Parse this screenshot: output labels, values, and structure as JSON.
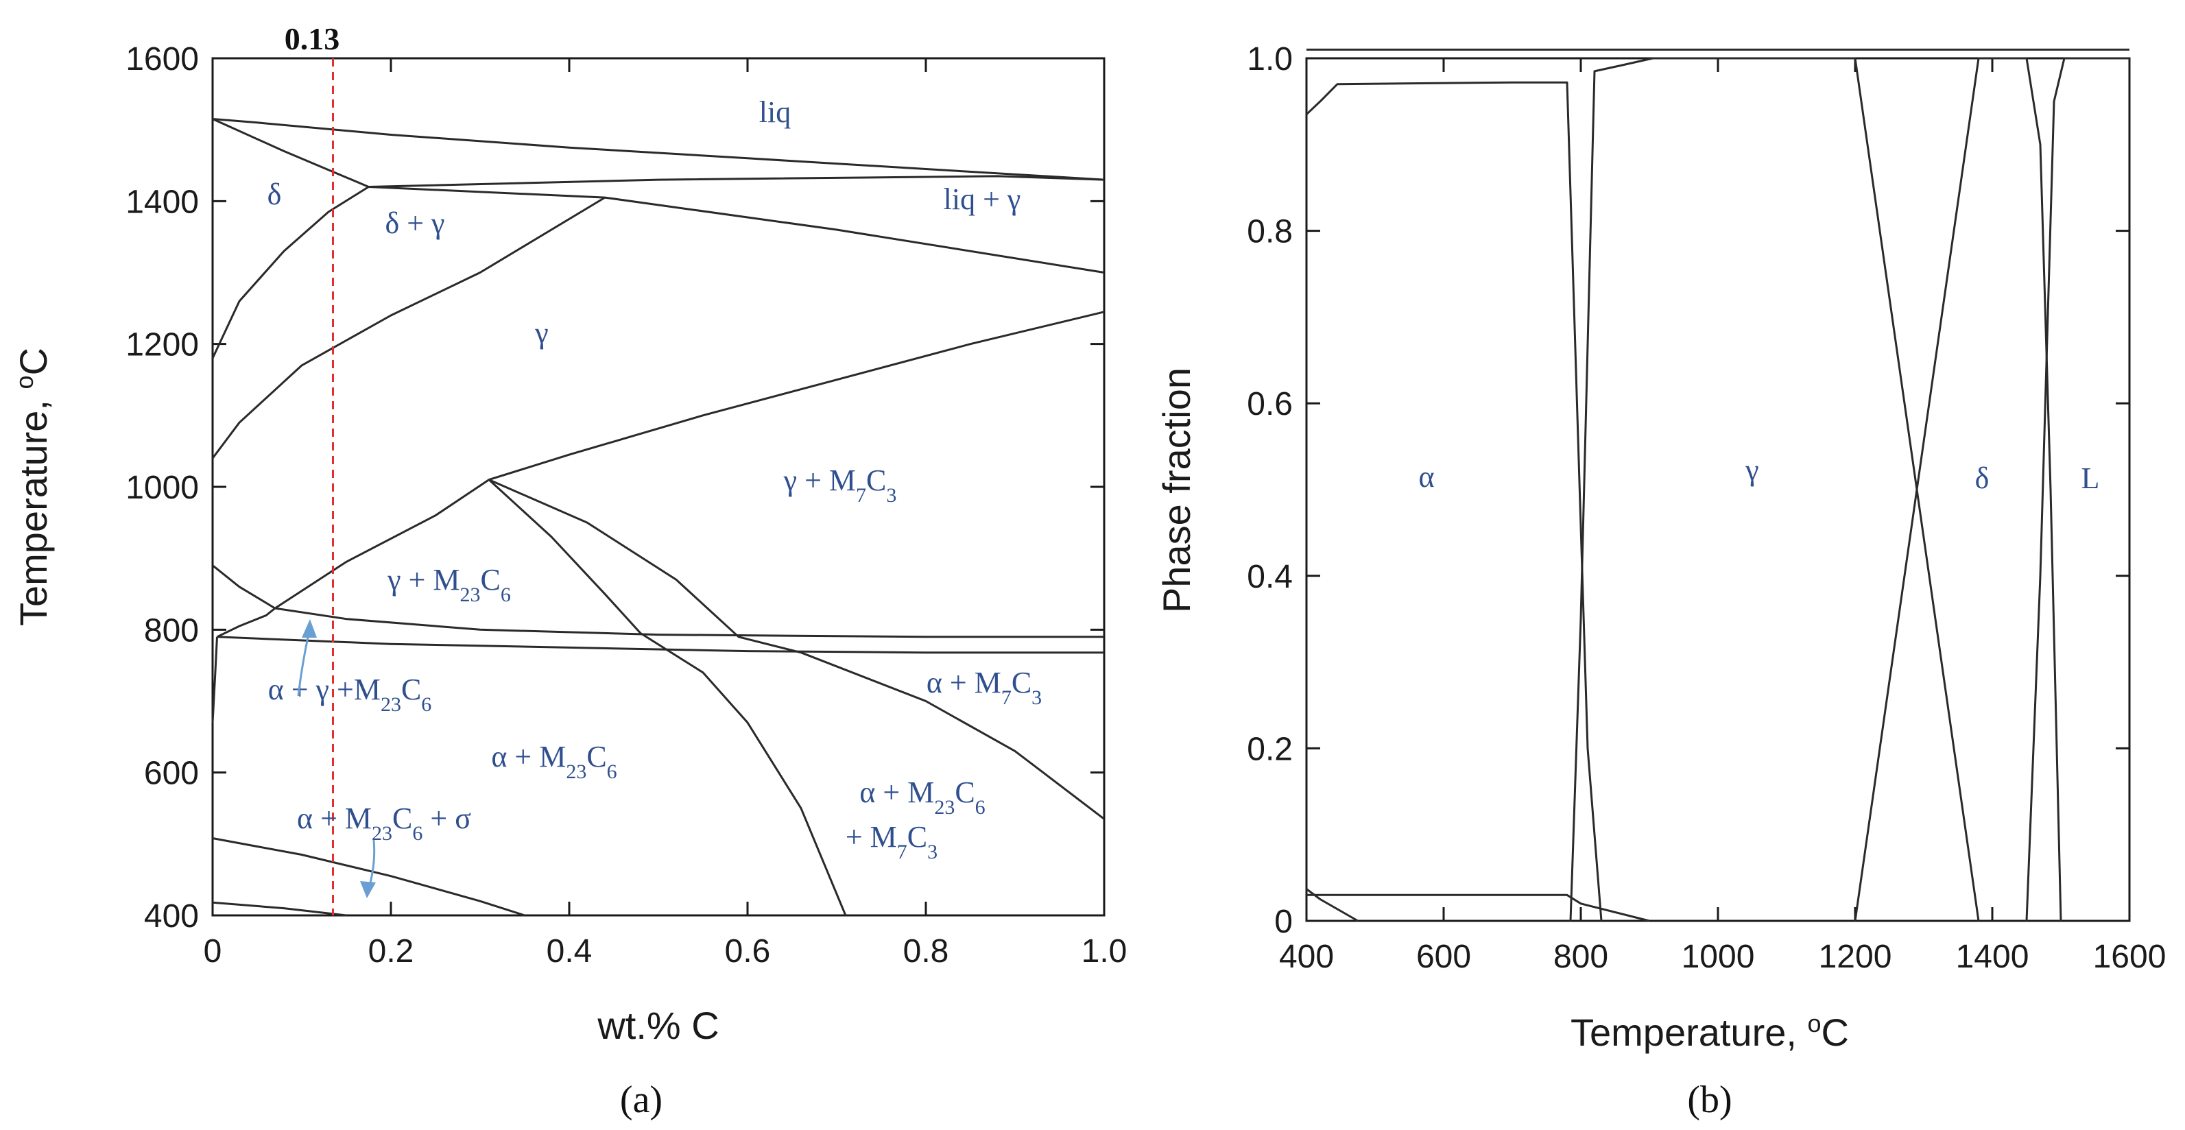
{
  "panels": {
    "a": {
      "caption": "(a)",
      "annotation": "0.13",
      "phase_labels": {
        "liq": "liq",
        "delta": "δ",
        "delta_gamma": "δ + γ",
        "liq_gamma": "liq + γ",
        "gamma": "γ",
        "gamma_m7c3": "γ + M7C3",
        "gamma_m23c6": "γ + M23C6",
        "alpha_gamma_m23c6": "α + γ +M23C6",
        "alpha_m7c3": "α + M7C3",
        "alpha_m23c6": "α + M23C6",
        "alpha_m23c6_sigma": "α + M23C6 + σ",
        "alpha_m23c6_m7c3_line1": "α + M23C6",
        "alpha_m23c6_m7c3_line2": "+ M7C3"
      }
    },
    "b": {
      "caption": "(b)",
      "phase_labels": {
        "alpha": "α",
        "gamma": "γ",
        "delta": "δ",
        "L": "L"
      }
    }
  },
  "chart_data": [
    {
      "type": "line",
      "subtype": "phase-diagram",
      "xlabel": "wt.% C",
      "ylabel": "Temperature, oC",
      "xlim": [
        0,
        1.0
      ],
      "ylim": [
        400,
        1600
      ],
      "xticks": [
        "0",
        "0.2",
        "0.4",
        "0.6",
        "0.8",
        "1.0"
      ],
      "yticks": [
        "400",
        "600",
        "800",
        "1000",
        "1200",
        "1400",
        "1600"
      ],
      "xtick_values": [
        0,
        0.2,
        0.4,
        0.6,
        0.8,
        1.0
      ],
      "ytick_values": [
        400,
        600,
        800,
        1000,
        1200,
        1400,
        1600
      ],
      "reference_line": {
        "x": 0.135,
        "color": "#e03030",
        "style": "dashed"
      },
      "series": [
        {
          "points": [
            [
              0,
              1515
            ],
            [
              0.05,
              1510
            ],
            [
              0.2,
              1493
            ],
            [
              0.4,
              1475
            ],
            [
              0.6,
              1460
            ],
            [
              0.8,
              1445
            ],
            [
              1.0,
              1430
            ]
          ]
        },
        {
          "points": [
            [
              0,
              1515
            ],
            [
              0.08,
              1470
            ],
            [
              0.175,
              1420
            ]
          ]
        },
        {
          "points": [
            [
              0.175,
              1420
            ],
            [
              0.5,
              1430
            ],
            [
              0.88,
              1435
            ],
            [
              1.0,
              1430
            ]
          ]
        },
        {
          "points": [
            [
              0.175,
              1420
            ],
            [
              0.44,
              1405
            ],
            [
              0.7,
              1360
            ],
            [
              1.0,
              1300
            ]
          ]
        },
        {
          "points": [
            [
              0,
              1180
            ],
            [
              0.03,
              1260
            ],
            [
              0.08,
              1330
            ],
            [
              0.13,
              1385
            ],
            [
              0.175,
              1420
            ]
          ]
        },
        {
          "points": [
            [
              0,
              1040
            ],
            [
              0.03,
              1090
            ],
            [
              0.1,
              1170
            ],
            [
              0.2,
              1240
            ],
            [
              0.3,
              1300
            ],
            [
              0.44,
              1405
            ]
          ]
        },
        {
          "points": [
            [
              0.07,
              830
            ],
            [
              0.15,
              895
            ],
            [
              0.25,
              960
            ],
            [
              0.31,
              1010
            ],
            [
              0.4,
              1045
            ],
            [
              0.55,
              1100
            ],
            [
              0.7,
              1150
            ],
            [
              0.85,
              1200
            ],
            [
              1.0,
              1245
            ]
          ]
        },
        {
          "points": [
            [
              0,
              890
            ],
            [
              0.03,
              860
            ],
            [
              0.07,
              830
            ]
          ]
        },
        {
          "points": [
            [
              0.005,
              790
            ],
            [
              0.03,
              805
            ],
            [
              0.06,
              820
            ],
            [
              0.07,
              830
            ]
          ]
        },
        {
          "points": [
            [
              0.07,
              830
            ],
            [
              0.15,
              815
            ],
            [
              0.3,
              800
            ],
            [
              0.5,
              793
            ],
            [
              0.8,
              790
            ],
            [
              1.0,
              790
            ]
          ]
        },
        {
          "points": [
            [
              0.005,
              790
            ],
            [
              0.2,
              780
            ],
            [
              0.4,
              775
            ],
            [
              0.6,
              770
            ],
            [
              0.8,
              768
            ],
            [
              1.0,
              768
            ]
          ]
        },
        {
          "points": [
            [
              0.005,
              790
            ],
            [
              0.003,
              740
            ],
            [
              0,
              670
            ]
          ]
        },
        {
          "points": [
            [
              0.31,
              1010
            ],
            [
              0.38,
              930
            ],
            [
              0.44,
              850
            ],
            [
              0.48,
              795
            ]
          ]
        },
        {
          "points": [
            [
              0.31,
              1010
            ],
            [
              0.42,
              950
            ],
            [
              0.52,
              870
            ],
            [
              0.59,
              790
            ],
            [
              0.66,
              768
            ]
          ]
        },
        {
          "points": [
            [
              0.66,
              768
            ],
            [
              0.8,
              700
            ],
            [
              0.9,
              630
            ],
            [
              1.0,
              535
            ]
          ]
        },
        {
          "points": [
            [
              0.48,
              795
            ],
            [
              0.55,
              740
            ],
            [
              0.6,
              670
            ],
            [
              0.66,
              550
            ],
            [
              0.71,
              400
            ]
          ]
        },
        {
          "points": [
            [
              0,
              508
            ],
            [
              0.1,
              485
            ],
            [
              0.2,
              455
            ],
            [
              0.3,
              420
            ],
            [
              0.35,
              400
            ]
          ]
        },
        {
          "points": [
            [
              0,
              418
            ],
            [
              0.08,
              410
            ],
            [
              0.15,
              400
            ]
          ]
        }
      ]
    },
    {
      "type": "line",
      "ylabel": "Phase fraction",
      "xlabel": "Temperature, oC",
      "xlim": [
        400,
        1600
      ],
      "ylim": [
        0,
        1.0
      ],
      "xticks": [
        "400",
        "600",
        "800",
        "1000",
        "1200",
        "1400",
        "1600"
      ],
      "yticks": [
        "0",
        "0.2",
        "0.4",
        "0.6",
        "0.8",
        "1.0"
      ],
      "xtick_values": [
        400,
        600,
        800,
        1000,
        1200,
        1400,
        1600
      ],
      "ytick_values": [
        0,
        0.2,
        0.4,
        0.6,
        0.8,
        1.0
      ],
      "series": [
        {
          "points": [
            [
              400,
              1.01
            ],
            [
              1600,
              1.01
            ]
          ]
        },
        {
          "points": [
            [
              400,
              0.935
            ],
            [
              420,
              0.95
            ],
            [
              445,
              0.97
            ],
            [
              700,
              0.972
            ],
            [
              780,
              0.972
            ],
            [
              810,
              0.2
            ],
            [
              830,
              0
            ]
          ]
        },
        {
          "points": [
            [
              785,
              0
            ],
            [
              800,
              0.35
            ],
            [
              820,
              0.985
            ],
            [
              860,
              0.992
            ],
            [
              905,
              1.0
            ],
            [
              1200,
              1.0
            ],
            [
              1290,
              0.5
            ],
            [
              1380,
              0
            ]
          ]
        },
        {
          "points": [
            [
              1200,
              0
            ],
            [
              1290,
              0.5
            ],
            [
              1380,
              1.0
            ],
            [
              1450,
              1.0
            ],
            [
              1470,
              0.9
            ],
            [
              1485,
              0.5
            ],
            [
              1500,
              0
            ]
          ]
        },
        {
          "points": [
            [
              1450,
              0
            ],
            [
              1470,
              0.4
            ],
            [
              1490,
              0.95
            ],
            [
              1505,
              1.0
            ],
            [
              1600,
              1.0
            ]
          ]
        },
        {
          "points": [
            [
              400,
              0.03
            ],
            [
              780,
              0.03
            ],
            [
              800,
              0.02
            ],
            [
              900,
              0.0
            ]
          ]
        },
        {
          "points": [
            [
              400,
              0.037
            ],
            [
              420,
              0.025
            ],
            [
              475,
              0.0
            ]
          ]
        }
      ]
    }
  ]
}
